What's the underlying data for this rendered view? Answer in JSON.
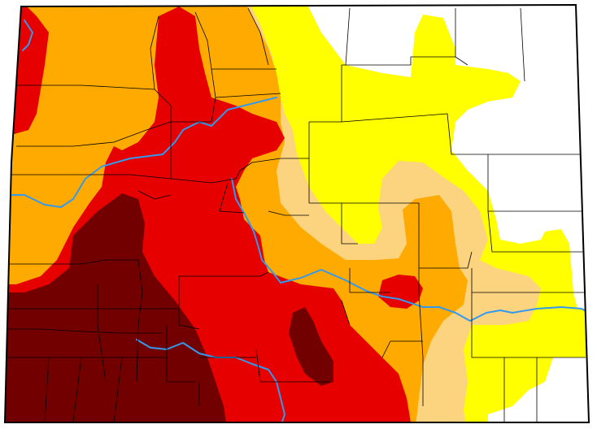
{
  "map": {
    "region": "Colorado",
    "colors": {
      "none": "#ffffff",
      "d0_abnormally_dry": "#ffff00",
      "d1_moderate": "#fcd37f",
      "d2_severe": "#ffaa00",
      "d3_extreme": "#e60000",
      "d4_exceptional": "#730000",
      "river": "#3399ee",
      "border": "#000000"
    },
    "layers": [
      "none",
      "d0_abnormally_dry",
      "d1_moderate",
      "d2_severe",
      "d3_extreme",
      "d4_exceptional"
    ]
  }
}
